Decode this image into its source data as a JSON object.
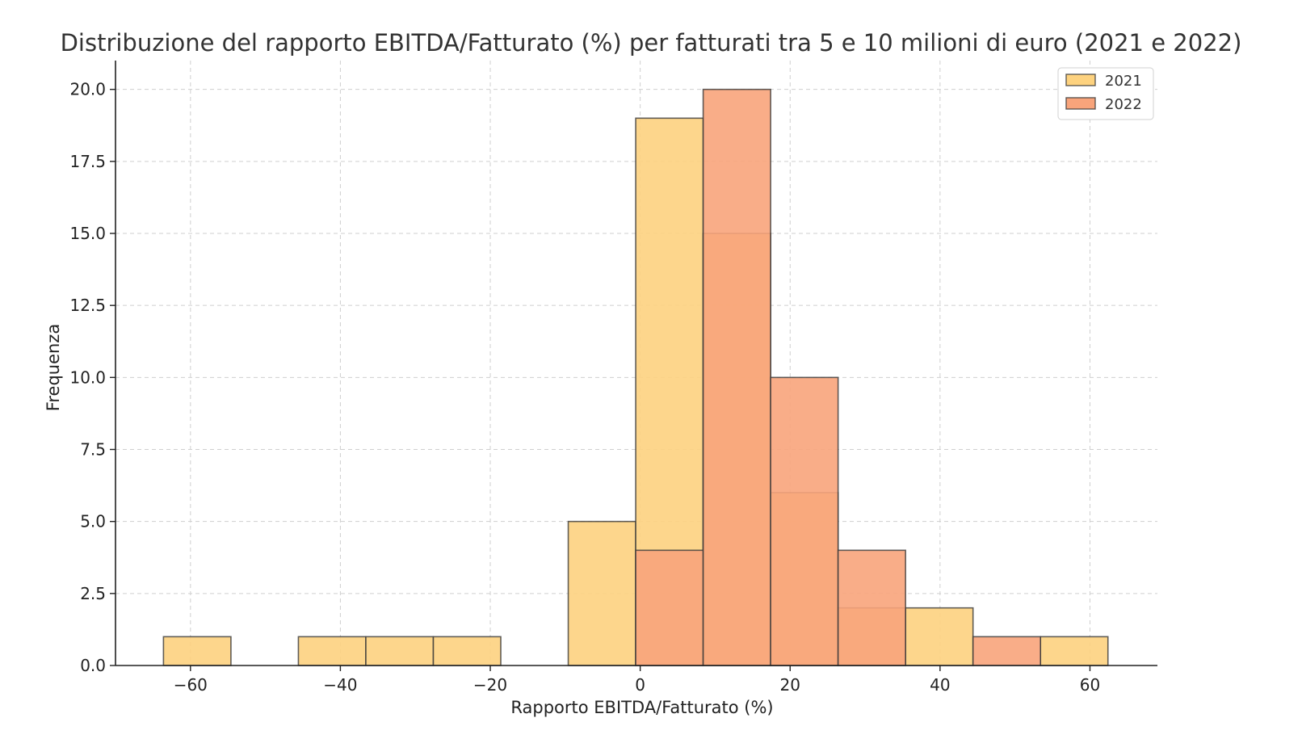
{
  "chart_data": {
    "type": "bar",
    "title": "Distribuzione del rapporto EBITDA/Fatturato (%) per fatturati tra 5 e 10 milioni di euro (2021 e 2022)",
    "xlabel": "Rapporto EBITDA/Fatturato (%)",
    "ylabel": "Frequenza",
    "xlim": [
      -70,
      69
    ],
    "ylim": [
      0,
      21
    ],
    "xticks": [
      -60,
      -40,
      -20,
      0,
      20,
      40,
      60
    ],
    "xtick_labels": [
      "−60",
      "−40",
      "−20",
      "0",
      "20",
      "40",
      "60"
    ],
    "yticks": [
      0,
      2.5,
      5,
      7.5,
      10,
      12.5,
      15,
      17.5,
      20
    ],
    "ytick_labels": [
      "0.0",
      "2.5",
      "5.0",
      "7.5",
      "10.0",
      "12.5",
      "15.0",
      "17.5",
      "20.0"
    ],
    "grid": true,
    "legend_position": "top-right",
    "series": [
      {
        "name": "2021",
        "color": "#FDD27F",
        "bins": [
          {
            "x0": -63.6,
            "x1": -54.6,
            "value": 1
          },
          {
            "x0": -45.6,
            "x1": -36.6,
            "value": 1
          },
          {
            "x0": -36.6,
            "x1": -27.6,
            "value": 1
          },
          {
            "x0": -27.6,
            "x1": -18.6,
            "value": 1
          },
          {
            "x0": -9.6,
            "x1": -0.6,
            "value": 5
          },
          {
            "x0": -0.6,
            "x1": 8.4,
            "value": 19
          },
          {
            "x0": 8.4,
            "x1": 17.4,
            "value": 15
          },
          {
            "x0": 17.4,
            "x1": 26.4,
            "value": 6
          },
          {
            "x0": 26.4,
            "x1": 35.4,
            "value": 2
          },
          {
            "x0": 35.4,
            "x1": 44.4,
            "value": 2
          },
          {
            "x0": 53.4,
            "x1": 62.4,
            "value": 1
          }
        ]
      },
      {
        "name": "2022",
        "color": "#F8A47B",
        "bins": [
          {
            "x0": -0.6,
            "x1": 8.4,
            "value": 4
          },
          {
            "x0": 8.4,
            "x1": 17.4,
            "value": 20
          },
          {
            "x0": 17.4,
            "x1": 26.4,
            "value": 10
          },
          {
            "x0": 26.4,
            "x1": 35.4,
            "value": 4
          },
          {
            "x0": 44.4,
            "x1": 53.4,
            "value": 1
          }
        ]
      }
    ]
  }
}
